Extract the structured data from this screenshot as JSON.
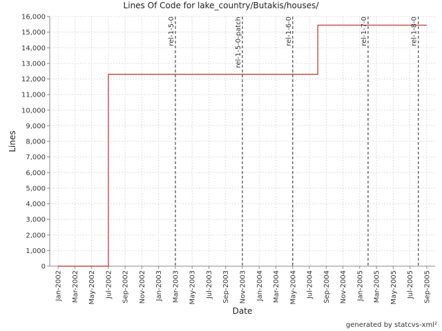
{
  "chart_data": {
    "type": "step-line",
    "title": "Lines Of Code for lake_country/Butakis/houses/",
    "x_label": "Date",
    "y_label": "Lines",
    "footer": "generated by statcvs-xml²",
    "x": [
      "Jan-2002",
      "Jul-2002",
      "Aug-2004",
      "Sep-2005"
    ],
    "series": [
      {
        "name": "Lines",
        "color": "#b0302a",
        "values": [
          0,
          12300,
          15450,
          15450
        ]
      }
    ],
    "xlim": [
      "Dec-2001",
      "Oct-2005"
    ],
    "xticks": [
      "Jan-2002",
      "Mar-2002",
      "May-2002",
      "Jul-2002",
      "Sep-2002",
      "Nov-2002",
      "Jan-2003",
      "Mar-2003",
      "May-2003",
      "Jul-2003",
      "Sep-2003",
      "Nov-2003",
      "Jan-2004",
      "Mar-2004",
      "May-2004",
      "Jul-2004",
      "Sep-2004",
      "Nov-2004",
      "Jan-2005",
      "Mar-2005",
      "May-2005",
      "Jul-2005",
      "Sep-2005"
    ],
    "ylim": [
      0,
      16000
    ],
    "yticks": [
      0,
      {
        "value": 1000,
        "label": "1,000"
      },
      {
        "value": 2000,
        "label": "2,000"
      },
      {
        "value": 3000,
        "label": "3,000"
      },
      {
        "value": 4000,
        "label": "4,000"
      },
      {
        "value": 5000,
        "label": "5,000"
      },
      {
        "value": 6000,
        "label": "6,000"
      },
      {
        "value": 7000,
        "label": "7,000"
      },
      {
        "value": 8000,
        "label": "8,000"
      },
      {
        "value": 9000,
        "label": "9,000"
      },
      {
        "value": 10000,
        "label": "10,000"
      },
      {
        "value": 11000,
        "label": "11,000"
      },
      {
        "value": 12000,
        "label": "12,000"
      },
      {
        "value": 13000,
        "label": "13,000"
      },
      {
        "value": 14000,
        "label": "14,000"
      },
      {
        "value": 15000,
        "label": "15,000"
      },
      {
        "value": 16000,
        "label": "16,000"
      }
    ],
    "annotations": [
      {
        "x": "Mar-2003",
        "label": "rel-1-5-0"
      },
      {
        "x": "Nov-2003",
        "label": "rel-1-5-0-patch"
      },
      {
        "x": "May-2004",
        "label": "rel-1-6-0"
      },
      {
        "x": "Feb-2005",
        "label": "rel-1-7-0"
      },
      {
        "x": "Aug-2005",
        "label": "rel-1-8-0"
      }
    ],
    "grid": true
  }
}
